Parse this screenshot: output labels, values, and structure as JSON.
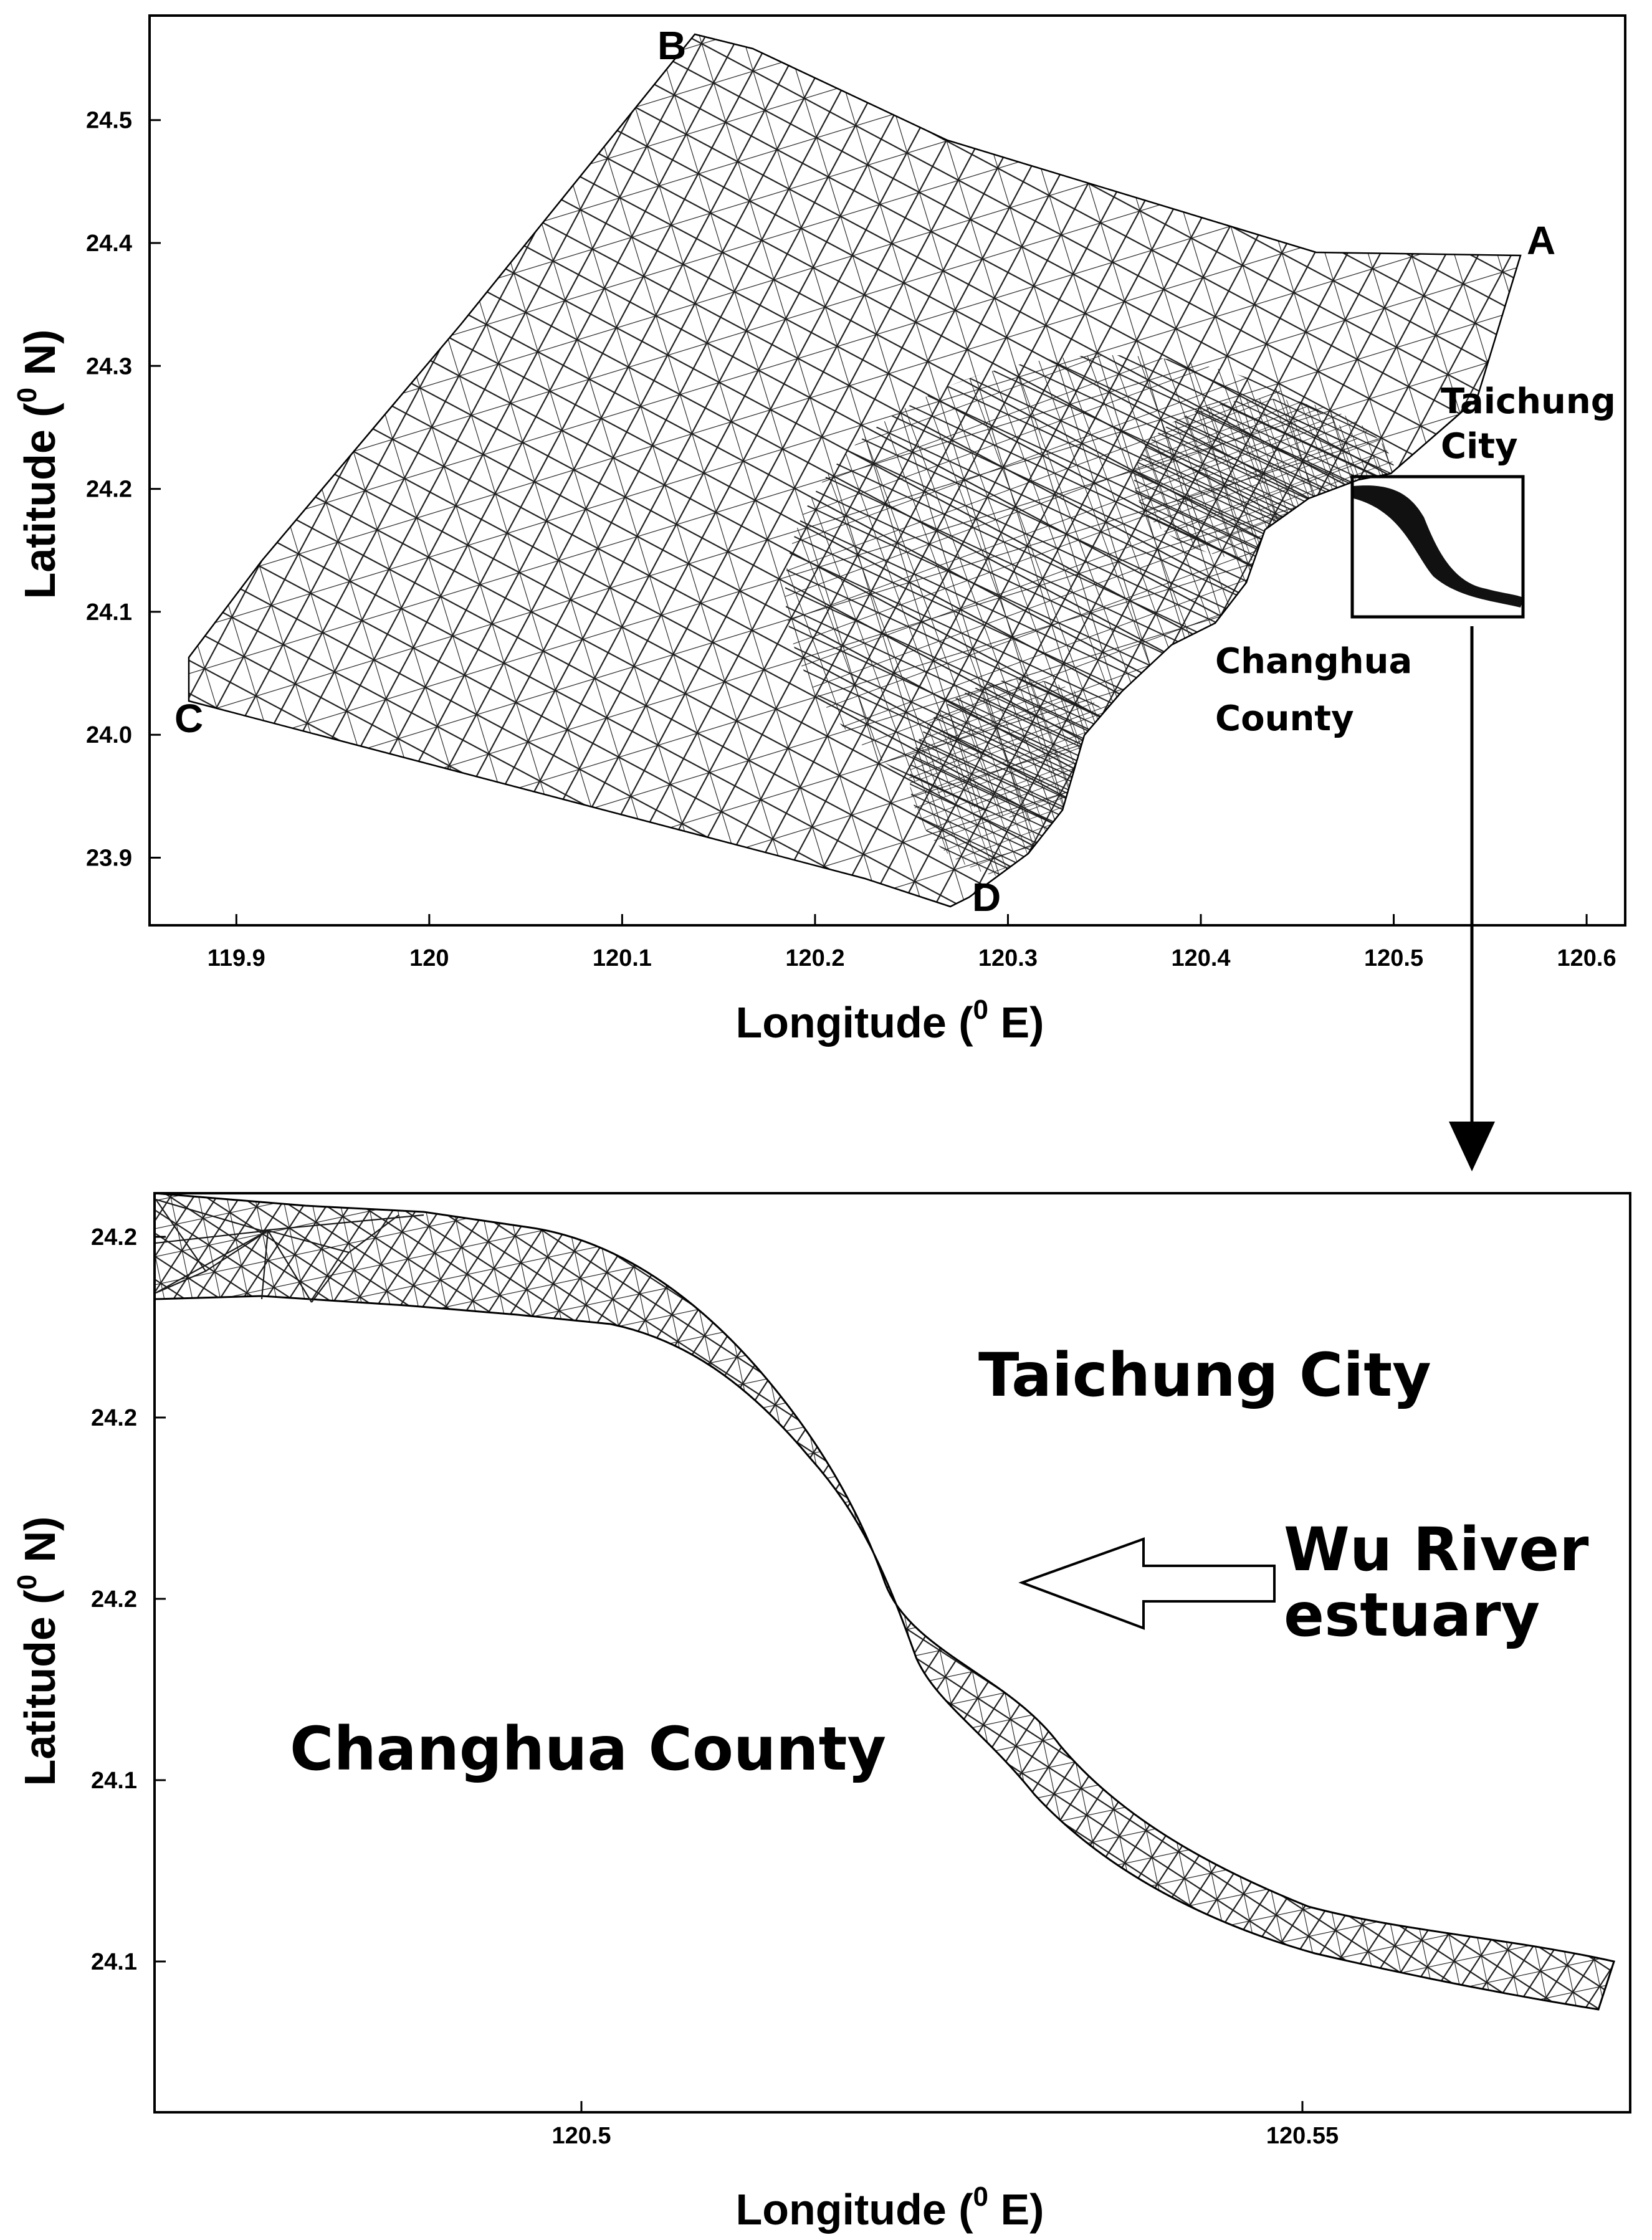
{
  "top_map": {
    "x_ticks": [
      "119.9",
      "120",
      "120.1",
      "120.2",
      "120.3",
      "120.4",
      "120.5",
      "120.6"
    ],
    "y_ticks": [
      "24.5",
      "24.4",
      "24.3",
      "24.2",
      "24.1",
      "24.0",
      "23.9"
    ],
    "xlabel": "Longitude (",
    "xlabel_sup": "0",
    "xlabel_end": " E)",
    "ylabel": "Latitude (",
    "ylabel_sup": "0",
    "ylabel_end": " N)",
    "corners": {
      "A": "A",
      "B": "B",
      "C": "C",
      "D": "D"
    },
    "labels": {
      "taichung_1": "Taichung",
      "taichung_2": "City",
      "changhua_1": "Changhua",
      "changhua_2": "County"
    },
    "xlim": [
      119.855,
      120.62
    ],
    "ylim": [
      23.845,
      24.585
    ]
  },
  "bottom_map": {
    "x_ticks": [
      "120.5",
      "120.55"
    ],
    "y_ticks": [
      "24.2",
      "24.2",
      "24.2",
      "24.1",
      "24.1"
    ],
    "xlabel": "Longitude (",
    "xlabel_sup": "0",
    "xlabel_end": " E)",
    "ylabel": "Latitude (",
    "ylabel_sup": "0",
    "ylabel_end": " N)",
    "labels": {
      "taichung": "Taichung City",
      "wu_river_1": "Wu River",
      "wu_river_2": "estuary",
      "changhua": "Changhua County"
    }
  },
  "colors": {
    "mesh": "#1a1a1a",
    "frame": "#000000",
    "background": "#ffffff"
  }
}
